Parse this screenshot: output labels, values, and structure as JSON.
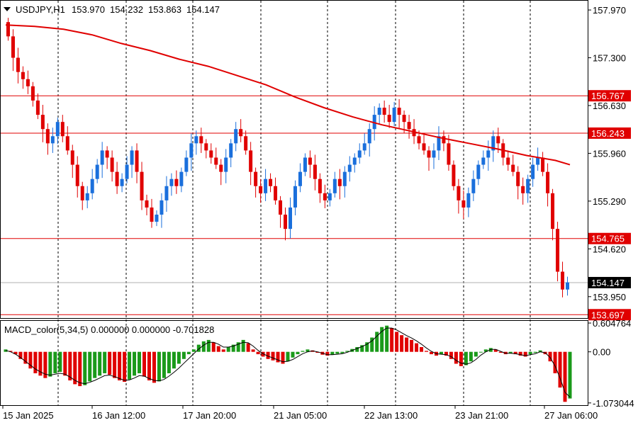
{
  "chart_data": {
    "type": "candlestick",
    "header": {
      "symbol": "USDJPY,H1",
      "open": "153.970",
      "high": "154.232",
      "low": "153.863",
      "close": "154.147"
    },
    "price_axis": {
      "range": [
        153.65,
        158.1
      ],
      "tick_labels": [
        "157.970",
        "157.300",
        "156.630",
        "155.960",
        "155.290",
        "154.620",
        "153.950"
      ],
      "tick_values": [
        157.97,
        157.3,
        156.63,
        155.96,
        155.29,
        154.62,
        153.95
      ]
    },
    "horizontal_levels": [
      {
        "value": 156.767,
        "label": "156.767",
        "color": "#e00000"
      },
      {
        "value": 156.243,
        "label": "156.243",
        "color": "#e00000"
      },
      {
        "value": 154.765,
        "label": "154.765",
        "color": "#e00000"
      },
      {
        "value": 153.697,
        "label": "153.697",
        "color": "#e00000"
      }
    ],
    "current_price": {
      "value": 154.147,
      "label": "154.147",
      "color": "#000000"
    },
    "time_axis": {
      "labels": [
        "15 Jan 2025",
        "16 Jan 12:00",
        "17 Jan 20:00",
        "21 Jan 05:00",
        "22 Jan 13:00",
        "23 Jan 21:00",
        "27 Jan 06:00"
      ]
    },
    "moving_average": {
      "color": "#e00000",
      "points": [
        [
          0,
          157.76
        ],
        [
          40,
          157.74
        ],
        [
          80,
          157.7
        ],
        [
          120,
          157.62
        ],
        [
          160,
          157.5
        ],
        [
          200,
          157.4
        ],
        [
          240,
          157.28
        ],
        [
          280,
          157.18
        ],
        [
          320,
          157.05
        ],
        [
          360,
          156.92
        ],
        [
          400,
          156.75
        ],
        [
          440,
          156.6
        ],
        [
          480,
          156.47
        ],
        [
          520,
          156.36
        ],
        [
          560,
          156.27
        ],
        [
          600,
          156.18
        ],
        [
          640,
          156.1
        ],
        [
          680,
          156.02
        ],
        [
          720,
          155.93
        ],
        [
          760,
          155.86
        ],
        [
          780,
          155.8
        ]
      ]
    },
    "candles_path": [
      157.8,
      157.6,
      157.3,
      157.1,
      157.0,
      156.9,
      156.7,
      156.5,
      156.3,
      156.1,
      156.2,
      156.4,
      156.2,
      156.0,
      155.8,
      155.5,
      155.3,
      155.4,
      155.6,
      155.8,
      156.0,
      155.9,
      155.7,
      155.5,
      155.6,
      155.8,
      156.0,
      155.7,
      155.3,
      155.2,
      155.0,
      155.1,
      155.3,
      155.5,
      155.6,
      155.5,
      155.7,
      155.9,
      156.1,
      156.2,
      156.1,
      156.0,
      155.9,
      155.8,
      155.7,
      155.9,
      156.1,
      156.3,
      156.2,
      156.0,
      155.7,
      155.5,
      155.4,
      155.6,
      155.5,
      155.3,
      155.1,
      154.9,
      155.2,
      155.5,
      155.7,
      155.9,
      155.8,
      155.6,
      155.4,
      155.3,
      155.4,
      155.6,
      155.5,
      155.7,
      155.8,
      155.9,
      156.0,
      156.1,
      156.3,
      156.5,
      156.6,
      156.5,
      156.4,
      156.6,
      156.5,
      156.4,
      156.3,
      156.2,
      156.1,
      156.0,
      155.9,
      156.0,
      156.2,
      156.1,
      155.8,
      155.5,
      155.3,
      155.2,
      155.4,
      155.6,
      155.8,
      155.9,
      156.0,
      156.2,
      156.1,
      155.9,
      155.8,
      155.7,
      155.5,
      155.4,
      155.6,
      155.8,
      155.9,
      155.7,
      155.4,
      154.9,
      154.3,
      154.05,
      154.15
    ],
    "indicator": {
      "name": "MACD_color(5,34,5) 0.000000 0.000000 -0.701828",
      "range": [
        -1.12,
        0.65
      ],
      "tick_labels": [
        "0.604764",
        "0.00",
        "-1.073044"
      ],
      "tick_values": [
        0.604764,
        0.0,
        -1.073044
      ],
      "up_color": "#1a9a1a",
      "down_color": "#e00000",
      "histogram": [
        0.05,
        0.02,
        -0.05,
        -0.15,
        -0.25,
        -0.35,
        -0.45,
        -0.5,
        -0.55,
        -0.52,
        -0.45,
        -0.42,
        -0.5,
        -0.6,
        -0.68,
        -0.72,
        -0.7,
        -0.62,
        -0.55,
        -0.5,
        -0.45,
        -0.48,
        -0.55,
        -0.6,
        -0.63,
        -0.58,
        -0.5,
        -0.45,
        -0.52,
        -0.6,
        -0.65,
        -0.62,
        -0.55,
        -0.45,
        -0.35,
        -0.25,
        -0.15,
        -0.05,
        0.05,
        0.15,
        0.22,
        0.25,
        0.2,
        0.12,
        0.05,
        0.1,
        0.15,
        0.2,
        0.25,
        0.18,
        0.05,
        -0.05,
        -0.1,
        -0.15,
        -0.18,
        -0.22,
        -0.25,
        -0.2,
        -0.12,
        -0.05,
        0.02,
        0.05,
        0.03,
        -0.02,
        -0.06,
        -0.08,
        -0.06,
        -0.04,
        -0.03,
        0.02,
        0.06,
        0.1,
        0.14,
        0.2,
        0.3,
        0.42,
        0.52,
        0.55,
        0.5,
        0.42,
        0.35,
        0.3,
        0.25,
        0.18,
        0.1,
        0.02,
        -0.05,
        -0.08,
        -0.05,
        -0.08,
        -0.15,
        -0.25,
        -0.3,
        -0.28,
        -0.2,
        -0.1,
        0.0,
        0.05,
        0.08,
        0.05,
        -0.02,
        -0.05,
        -0.03,
        -0.05,
        -0.08,
        -0.1,
        -0.05,
        -0.02,
        0.03,
        -0.05,
        -0.2,
        -0.45,
        -0.75,
        -1.05,
        -0.98
      ],
      "signal": [
        0.03,
        0.0,
        -0.05,
        -0.12,
        -0.2,
        -0.28,
        -0.36,
        -0.42,
        -0.47,
        -0.49,
        -0.47,
        -0.45,
        -0.47,
        -0.53,
        -0.6,
        -0.65,
        -0.67,
        -0.64,
        -0.6,
        -0.55,
        -0.5,
        -0.49,
        -0.52,
        -0.56,
        -0.6,
        -0.59,
        -0.55,
        -0.5,
        -0.51,
        -0.56,
        -0.6,
        -0.61,
        -0.58,
        -0.51,
        -0.43,
        -0.34,
        -0.24,
        -0.14,
        -0.04,
        0.06,
        0.14,
        0.2,
        0.2,
        0.16,
        0.1,
        0.1,
        0.12,
        0.16,
        0.2,
        0.19,
        0.12,
        0.03,
        -0.04,
        -0.09,
        -0.13,
        -0.17,
        -0.21,
        -0.2,
        -0.16,
        -0.1,
        -0.04,
        0.0,
        0.02,
        0.0,
        -0.03,
        -0.06,
        -0.06,
        -0.05,
        -0.04,
        -0.01,
        0.03,
        0.07,
        0.11,
        0.16,
        0.23,
        0.33,
        0.43,
        0.5,
        0.5,
        0.46,
        0.4,
        0.34,
        0.29,
        0.23,
        0.16,
        0.08,
        0.01,
        -0.04,
        -0.05,
        -0.06,
        -0.1,
        -0.18,
        -0.24,
        -0.26,
        -0.23,
        -0.16,
        -0.07,
        0.0,
        0.05,
        0.05,
        0.01,
        -0.03,
        -0.03,
        -0.04,
        -0.06,
        -0.08,
        -0.06,
        -0.04,
        0.0,
        -0.02,
        -0.12,
        -0.3,
        -0.55,
        -0.85,
        -0.95
      ]
    }
  }
}
